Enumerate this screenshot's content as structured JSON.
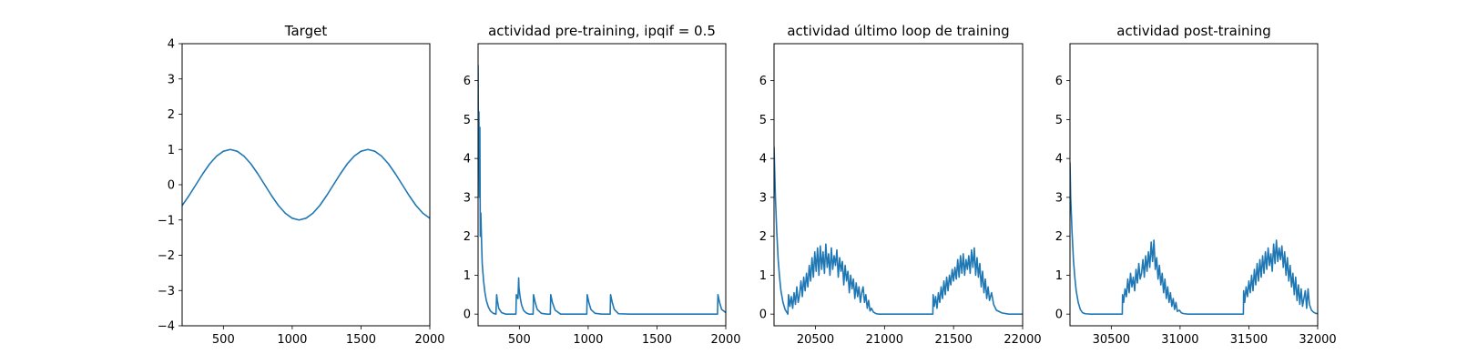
{
  "chart_data": [
    {
      "type": "line",
      "title": "Target",
      "xlim": [
        200,
        2000
      ],
      "ylim": [
        -4,
        4
      ],
      "xticks": [
        500,
        1000,
        1500,
        2000
      ],
      "yticks": [
        -4,
        -3,
        -2,
        -1,
        0,
        1,
        2,
        3,
        4
      ],
      "grid": false,
      "series": [
        {
          "color": "#1f77b4",
          "x": [
            200,
            250,
            300,
            350,
            400,
            450,
            500,
            550,
            600,
            650,
            700,
            750,
            800,
            850,
            900,
            950,
            1000,
            1050,
            1100,
            1150,
            1200,
            1250,
            1300,
            1350,
            1400,
            1450,
            1500,
            1550,
            1600,
            1650,
            1700,
            1750,
            1800,
            1850,
            1900,
            1950,
            2000
          ],
          "y": [
            -0.59,
            -0.31,
            0.0,
            0.31,
            0.59,
            0.81,
            0.95,
            1.0,
            0.95,
            0.81,
            0.59,
            0.31,
            0.0,
            -0.31,
            -0.59,
            -0.81,
            -0.95,
            -1.0,
            -0.95,
            -0.81,
            -0.59,
            -0.31,
            0.0,
            0.31,
            0.59,
            0.81,
            0.95,
            1.0,
            0.95,
            0.81,
            0.59,
            0.31,
            0.0,
            -0.31,
            -0.59,
            -0.81,
            -0.95
          ]
        }
      ]
    },
    {
      "type": "line",
      "title": "actividad pre-training, ipqif = 0.5",
      "xlim": [
        200,
        2000
      ],
      "ylim": [
        -0.3,
        6.95
      ],
      "xticks": [
        500,
        1000,
        1500,
        2000
      ],
      "yticks": [
        0,
        1,
        2,
        3,
        4,
        5,
        6
      ],
      "grid": false,
      "series": [
        {
          "color": "#1f77b4",
          "x": [
            200,
            203,
            206,
            210,
            213,
            216,
            220,
            225,
            230,
            240,
            250,
            260,
            275,
            290,
            310,
            330,
            335,
            340,
            350,
            370,
            400,
            450,
            475,
            478,
            490,
            495,
            497,
            505,
            515,
            530,
            550,
            570,
            600,
            603,
            615,
            630,
            660,
            700,
            725,
            728,
            740,
            760,
            800,
            850,
            900,
            950,
            990,
            993,
            1005,
            1020,
            1050,
            1100,
            1160,
            1163,
            1175,
            1190,
            1220,
            1300,
            1400,
            1500,
            1600,
            1700,
            1800,
            1900,
            1940,
            1943,
            1955,
            1970,
            2000
          ],
          "y": [
            6.4,
            4.3,
            5.2,
            3.0,
            4.8,
            2.0,
            2.6,
            1.9,
            1.3,
            0.85,
            0.55,
            0.35,
            0.18,
            0.08,
            0.02,
            0.0,
            0.5,
            0.35,
            0.15,
            0.04,
            0.0,
            0.0,
            0.0,
            0.5,
            0.4,
            0.93,
            0.7,
            0.45,
            0.25,
            0.1,
            0.03,
            0.0,
            0.0,
            0.5,
            0.3,
            0.12,
            0.02,
            0.0,
            0.0,
            0.5,
            0.3,
            0.1,
            0.0,
            0.0,
            0.0,
            0.0,
            0.0,
            0.5,
            0.3,
            0.12,
            0.02,
            0.0,
            0.0,
            0.5,
            0.3,
            0.12,
            0.01,
            0.0,
            0.0,
            0.0,
            0.0,
            0.0,
            0.0,
            0.0,
            0.0,
            0.5,
            0.3,
            0.12,
            0.04
          ]
        }
      ]
    },
    {
      "type": "line",
      "title": "actividad último loop de training",
      "xlim": [
        20200,
        22000
      ],
      "ylim": [
        -0.3,
        6.95
      ],
      "xticks": [
        20500,
        21000,
        21500,
        22000
      ],
      "yticks": [
        0,
        1,
        2,
        3,
        4,
        5,
        6
      ],
      "grid": false,
      "series": [
        {
          "color": "#1f77b4",
          "x": [
            20200,
            20210,
            20220,
            20230,
            20240,
            20250,
            20265,
            20280,
            20295,
            20300,
            20305,
            20315,
            20325,
            20335,
            20345,
            20355,
            20365,
            20375,
            20385,
            20395,
            20405,
            20415,
            20425,
            20435,
            20445,
            20455,
            20465,
            20475,
            20485,
            20495,
            20505,
            20515,
            20525,
            20535,
            20545,
            20555,
            20565,
            20575,
            20585,
            20595,
            20605,
            20615,
            20625,
            20635,
            20645,
            20655,
            20665,
            20675,
            20685,
            20695,
            20705,
            20715,
            20725,
            20735,
            20745,
            20755,
            20765,
            20775,
            20785,
            20795,
            20805,
            20815,
            20825,
            20835,
            20845,
            20855,
            20865,
            20875,
            20885,
            20895,
            20905,
            20920,
            20940,
            20960,
            21000,
            21100,
            21200,
            21300,
            21350,
            21352,
            21360,
            21370,
            21380,
            21390,
            21400,
            21410,
            21420,
            21430,
            21440,
            21450,
            21460,
            21470,
            21480,
            21490,
            21500,
            21510,
            21520,
            21530,
            21540,
            21550,
            21560,
            21570,
            21580,
            21590,
            21600,
            21610,
            21620,
            21630,
            21640,
            21650,
            21660,
            21670,
            21680,
            21690,
            21700,
            21710,
            21720,
            21730,
            21740,
            21750,
            21760,
            21775,
            21790,
            21810,
            21850,
            21900,
            22000
          ],
          "y": [
            4.3,
            3.0,
            2.1,
            1.4,
            0.95,
            0.6,
            0.3,
            0.12,
            0.03,
            0.0,
            0.5,
            0.2,
            0.45,
            0.15,
            0.55,
            0.25,
            0.7,
            0.3,
            0.5,
            0.85,
            0.45,
            0.95,
            0.6,
            1.05,
            0.7,
            1.25,
            0.85,
            1.45,
            0.95,
            1.6,
            1.1,
            1.7,
            1.0,
            1.75,
            1.15,
            1.6,
            1.05,
            1.8,
            1.2,
            1.55,
            1.0,
            1.7,
            1.15,
            1.5,
            1.25,
            1.65,
            0.95,
            1.45,
            1.1,
            1.35,
            0.75,
            1.25,
            0.85,
            1.1,
            0.55,
            1.0,
            0.65,
            0.9,
            0.4,
            0.8,
            0.45,
            0.7,
            0.3,
            0.55,
            0.7,
            0.3,
            0.5,
            0.15,
            0.35,
            0.08,
            0.15,
            0.05,
            0.01,
            0.0,
            0.0,
            0.0,
            0.0,
            0.0,
            0.0,
            0.5,
            0.2,
            0.45,
            0.15,
            0.55,
            0.3,
            0.7,
            0.4,
            0.85,
            0.5,
            0.95,
            0.6,
            1.0,
            0.75,
            1.15,
            0.85,
            1.2,
            0.9,
            1.4,
            0.95,
            1.5,
            1.05,
            1.55,
            1.0,
            1.4,
            1.15,
            1.5,
            1.05,
            1.65,
            1.2,
            1.7,
            1.0,
            1.45,
            0.95,
            1.3,
            0.7,
            1.1,
            0.55,
            0.9,
            0.4,
            0.7,
            0.35,
            0.55,
            0.25,
            0.1,
            0.03,
            0.0,
            0.0
          ]
        }
      ]
    },
    {
      "type": "line",
      "title": "actividad post-training",
      "xlim": [
        30200,
        32000
      ],
      "ylim": [
        -0.3,
        6.95
      ],
      "xticks": [
        30500,
        31000,
        31500,
        32000
      ],
      "yticks": [
        0,
        1,
        2,
        3,
        4,
        5,
        6
      ],
      "grid": false,
      "series": [
        {
          "color": "#1f77b4",
          "x": [
            30200,
            30205,
            30215,
            30225,
            30235,
            30245,
            30260,
            30275,
            30290,
            30310,
            30350,
            30400,
            30500,
            30580,
            30582,
            30590,
            30600,
            30610,
            30620,
            30630,
            30640,
            30650,
            30660,
            30670,
            30680,
            30690,
            30700,
            30710,
            30720,
            30730,
            30740,
            30750,
            30760,
            30770,
            30780,
            30790,
            30800,
            30810,
            30820,
            30830,
            30840,
            30850,
            30860,
            30870,
            30880,
            30890,
            30900,
            30910,
            30920,
            30930,
            30940,
            30950,
            30960,
            30970,
            30980,
            30995,
            31010,
            31030,
            31060,
            31100,
            31200,
            31300,
            31400,
            31460,
            31462,
            31470,
            31480,
            31490,
            31500,
            31510,
            31520,
            31530,
            31540,
            31550,
            31560,
            31570,
            31580,
            31590,
            31600,
            31610,
            31620,
            31630,
            31640,
            31650,
            31660,
            31670,
            31680,
            31690,
            31700,
            31710,
            31720,
            31730,
            31740,
            31750,
            31760,
            31770,
            31780,
            31790,
            31800,
            31810,
            31820,
            31830,
            31840,
            31850,
            31860,
            31870,
            31880,
            31890,
            31900,
            31910,
            31920,
            31930,
            31940,
            31955,
            31970,
            31985,
            32000
          ],
          "y": [
            3.9,
            3.0,
            2.1,
            1.4,
            0.95,
            0.6,
            0.3,
            0.12,
            0.04,
            0.01,
            0.0,
            0.0,
            0.0,
            0.0,
            0.5,
            0.3,
            0.65,
            0.45,
            0.9,
            0.55,
            1.05,
            0.7,
            0.95,
            0.6,
            1.15,
            0.8,
            1.3,
            0.9,
            1.05,
            1.4,
            0.95,
            1.5,
            1.1,
            1.6,
            1.2,
            1.85,
            1.35,
            1.9,
            1.15,
            1.45,
            0.9,
            1.25,
            0.75,
            1.05,
            0.55,
            0.9,
            0.4,
            0.7,
            0.3,
            0.55,
            0.2,
            0.4,
            0.12,
            0.3,
            0.07,
            0.1,
            0.03,
            0.01,
            0.0,
            0.0,
            0.0,
            0.0,
            0.0,
            0.0,
            0.6,
            0.3,
            0.7,
            0.45,
            0.85,
            0.55,
            1.0,
            0.6,
            1.15,
            0.75,
            1.3,
            0.85,
            1.4,
            0.95,
            1.5,
            1.05,
            1.6,
            1.15,
            1.7,
            1.25,
            1.55,
            1.1,
            1.8,
            1.3,
            1.9,
            1.35,
            1.7,
            1.4,
            1.75,
            1.2,
            1.6,
            1.0,
            1.45,
            0.85,
            1.25,
            0.7,
            1.05,
            0.5,
            0.95,
            0.35,
            0.75,
            0.25,
            0.65,
            0.2,
            0.4,
            0.6,
            0.15,
            0.65,
            0.25,
            0.1,
            0.05,
            0.02,
            0.01
          ]
        }
      ]
    }
  ]
}
